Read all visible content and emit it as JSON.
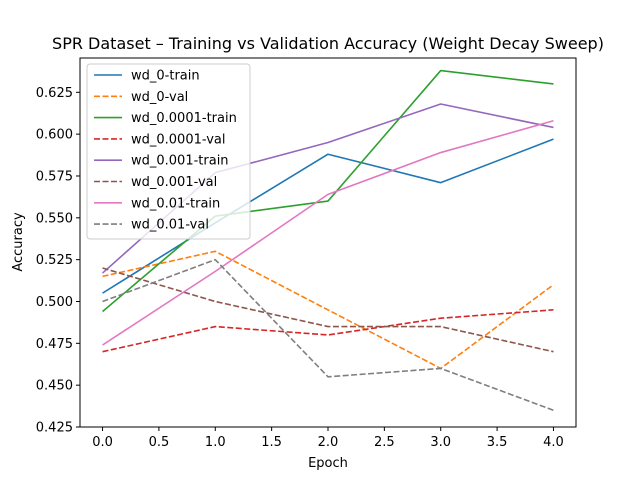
{
  "chart_data": {
    "type": "line",
    "title": "SPR Dataset – Training vs Validation Accuracy (Weight Decay Sweep)",
    "xlabel": "Epoch",
    "ylabel": "Accuracy",
    "x": [
      0,
      1,
      2,
      3,
      4
    ],
    "xlim": [
      -0.2,
      4.2
    ],
    "ylim": [
      0.425,
      0.6455
    ],
    "xticks": [
      "0.0",
      "0.5",
      "1.0",
      "1.5",
      "2.0",
      "2.5",
      "3.0",
      "3.5",
      "4.0"
    ],
    "yticks": [
      "0.425",
      "0.450",
      "0.475",
      "0.500",
      "0.525",
      "0.550",
      "0.575",
      "0.600",
      "0.625"
    ],
    "grid": false,
    "legend_position": "top-left",
    "series": [
      {
        "name": "wd_0-train",
        "values": [
          0.505,
          0.547,
          0.588,
          0.571,
          0.597
        ],
        "color": "#1f77b4",
        "style": "solid"
      },
      {
        "name": "wd_0-val",
        "values": [
          0.515,
          0.53,
          0.495,
          0.46,
          0.51
        ],
        "color": "#ff7f0e",
        "style": "dashed"
      },
      {
        "name": "wd_0.0001-train",
        "values": [
          0.494,
          0.551,
          0.56,
          0.638,
          0.63
        ],
        "color": "#2ca02c",
        "style": "solid"
      },
      {
        "name": "wd_0.0001-val",
        "values": [
          0.47,
          0.485,
          0.48,
          0.49,
          0.495
        ],
        "color": "#d62728",
        "style": "dashed"
      },
      {
        "name": "wd_0.001-train",
        "values": [
          0.517,
          0.577,
          0.595,
          0.618,
          0.604
        ],
        "color": "#9467bd",
        "style": "solid"
      },
      {
        "name": "wd_0.001-val",
        "values": [
          0.52,
          0.5,
          0.485,
          0.485,
          0.47
        ],
        "color": "#8c564b",
        "style": "dashed"
      },
      {
        "name": "wd_0.01-train",
        "values": [
          0.474,
          0.518,
          0.564,
          0.589,
          0.608
        ],
        "color": "#e377c2",
        "style": "solid"
      },
      {
        "name": "wd_0.01-val",
        "values": [
          0.5,
          0.525,
          0.455,
          0.46,
          0.435
        ],
        "color": "#7f7f7f",
        "style": "dashed"
      }
    ]
  }
}
